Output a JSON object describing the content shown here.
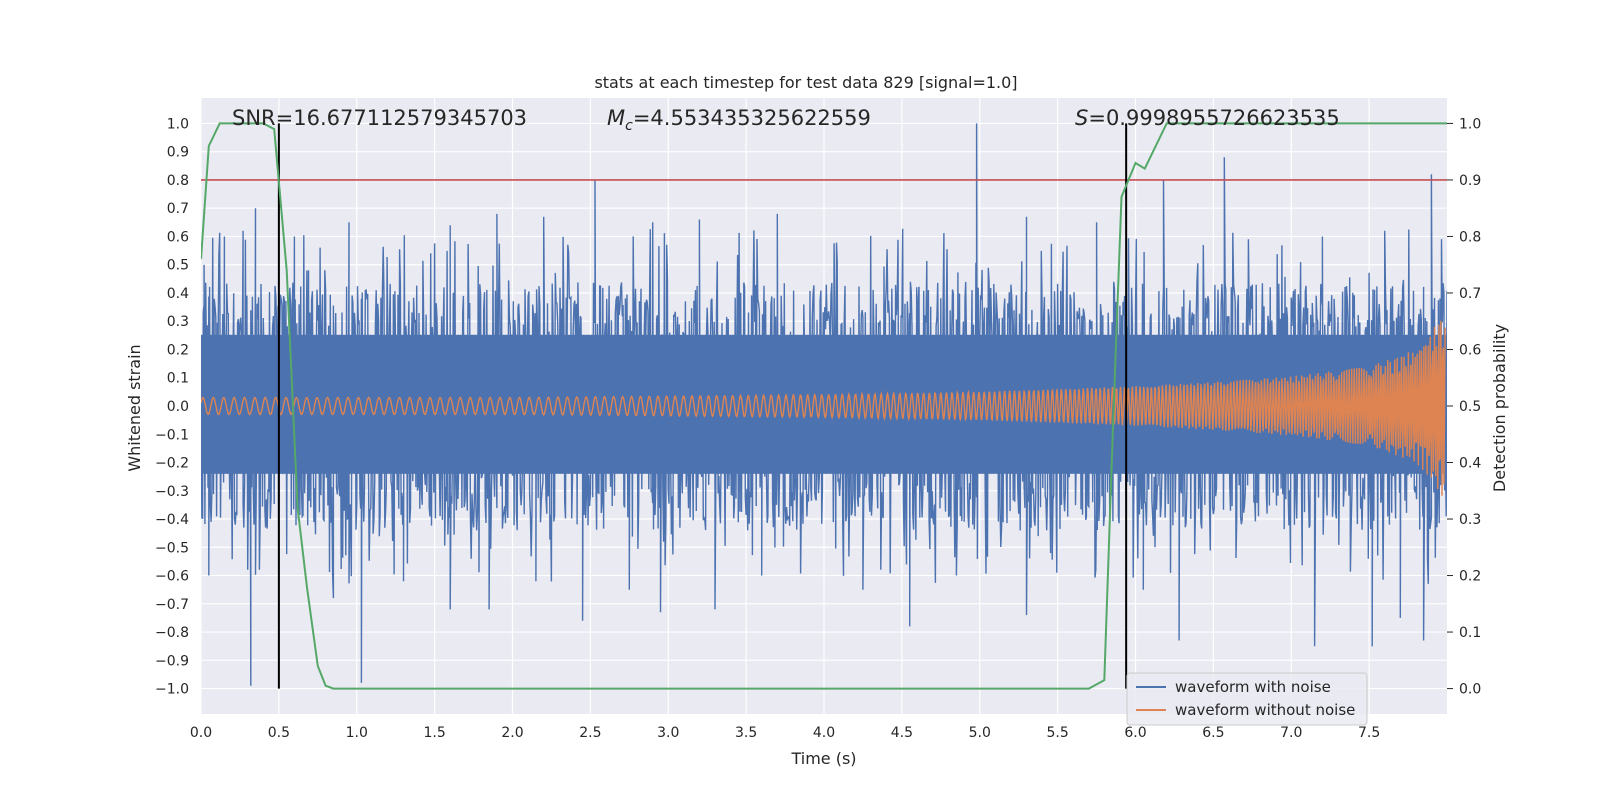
{
  "chart_data": {
    "type": "line",
    "title": "stats at each timestep for test data 829 [signal=1.0]",
    "xlabel": "Time (s)",
    "ylabel": "Whitened strain",
    "y2label": "Detection probability",
    "xlim": [
      0.0,
      8.0
    ],
    "ylim": [
      -1.09,
      1.09
    ],
    "y2lim": [
      -0.045,
      1.045
    ],
    "x_ticks": [
      "0.0",
      "0.5",
      "1.0",
      "1.5",
      "2.0",
      "2.5",
      "3.0",
      "3.5",
      "4.0",
      "4.5",
      "5.0",
      "5.5",
      "6.0",
      "6.5",
      "7.0",
      "7.5"
    ],
    "y_ticks": [
      "1.0",
      "0.9",
      "0.8",
      "0.7",
      "0.6",
      "0.5",
      "0.4",
      "0.3",
      "0.2",
      "0.1",
      "0.0",
      "−0.1",
      "−0.2",
      "−0.3",
      "−0.4",
      "−0.5",
      "−0.6",
      "−0.7",
      "−0.8",
      "−0.9",
      "−1.0"
    ],
    "y2_ticks": [
      "1.0",
      "0.9",
      "0.8",
      "0.7",
      "0.6",
      "0.5",
      "0.4",
      "0.3",
      "0.2",
      "0.1",
      "0.0"
    ],
    "grid": true,
    "legend_position": "lower-right",
    "stats": {
      "snr_label": "SNR=16.677112579345703",
      "mc_symbol": "M",
      "mc_sub": "c",
      "mc_value": "=4.553435325622559",
      "s_symbol": "S",
      "s_value": "=0.9998955726623535"
    },
    "threshold_line": {
      "y": 0.8,
      "color": "#c44e52"
    },
    "vertical_markers": [
      0.5,
      5.94
    ],
    "series": [
      {
        "name": "waveform with noise",
        "color": "#4c72b0",
        "typical_envelope": {
          "upper": 0.42,
          "lower": -0.4
        },
        "peaks": [
          {
            "x": 0.02,
            "y": 0.5
          },
          {
            "x": 0.15,
            "y": 0.6
          },
          {
            "x": 0.27,
            "y": 0.62
          },
          {
            "x": 0.35,
            "y": 0.7
          },
          {
            "x": 0.6,
            "y": 0.6
          },
          {
            "x": 0.95,
            "y": 0.65
          },
          {
            "x": 1.6,
            "y": 0.64
          },
          {
            "x": 1.9,
            "y": 0.68
          },
          {
            "x": 2.2,
            "y": 0.67
          },
          {
            "x": 2.53,
            "y": 0.8
          },
          {
            "x": 2.9,
            "y": 0.65
          },
          {
            "x": 3.2,
            "y": 0.66
          },
          {
            "x": 3.7,
            "y": 0.68
          },
          {
            "x": 4.3,
            "y": 0.6
          },
          {
            "x": 4.98,
            "y": 1.0
          },
          {
            "x": 5.3,
            "y": 0.67
          },
          {
            "x": 5.75,
            "y": 0.65
          },
          {
            "x": 6.18,
            "y": 0.8
          },
          {
            "x": 6.57,
            "y": 0.88
          },
          {
            "x": 7.2,
            "y": 0.6
          },
          {
            "x": 7.6,
            "y": 0.62
          },
          {
            "x": 7.9,
            "y": 0.82
          }
        ],
        "troughs": [
          {
            "x": 0.05,
            "y": -0.6
          },
          {
            "x": 0.32,
            "y": -0.99
          },
          {
            "x": 0.5,
            "y": -0.92
          },
          {
            "x": 0.85,
            "y": -0.68
          },
          {
            "x": 1.03,
            "y": -0.98
          },
          {
            "x": 1.3,
            "y": -0.62
          },
          {
            "x": 1.6,
            "y": -0.72
          },
          {
            "x": 1.85,
            "y": -0.72
          },
          {
            "x": 2.15,
            "y": -0.62
          },
          {
            "x": 2.45,
            "y": -0.76
          },
          {
            "x": 2.75,
            "y": -0.65
          },
          {
            "x": 2.95,
            "y": -0.73
          },
          {
            "x": 3.3,
            "y": -0.72
          },
          {
            "x": 3.6,
            "y": -0.6
          },
          {
            "x": 4.25,
            "y": -0.65
          },
          {
            "x": 4.55,
            "y": -0.78
          },
          {
            "x": 4.85,
            "y": -0.6
          },
          {
            "x": 5.3,
            "y": -0.74
          },
          {
            "x": 6.05,
            "y": -0.65
          },
          {
            "x": 6.28,
            "y": -0.83
          },
          {
            "x": 7.15,
            "y": -0.85
          },
          {
            "x": 7.52,
            "y": -0.85
          },
          {
            "x": 7.7,
            "y": -0.75
          },
          {
            "x": 7.85,
            "y": -0.83
          }
        ]
      },
      {
        "name": "waveform without noise",
        "color": "#dd8452",
        "envelope": [
          {
            "x": 0.0,
            "y": 0.03
          },
          {
            "x": 2.0,
            "y": 0.03
          },
          {
            "x": 4.0,
            "y": 0.04
          },
          {
            "x": 5.0,
            "y": 0.05
          },
          {
            "x": 6.0,
            "y": 0.07
          },
          {
            "x": 6.5,
            "y": 0.085
          },
          {
            "x": 7.0,
            "y": 0.105
          },
          {
            "x": 7.5,
            "y": 0.14
          },
          {
            "x": 7.8,
            "y": 0.2
          },
          {
            "x": 7.9,
            "y": 0.26
          },
          {
            "x": 7.97,
            "y": 0.33
          },
          {
            "x": 8.0,
            "y": 0.25
          }
        ]
      },
      {
        "name": "detection probability",
        "color": "#55a868",
        "axis": "right",
        "points": [
          {
            "x": 0.0,
            "y": 0.76
          },
          {
            "x": 0.05,
            "y": 0.96
          },
          {
            "x": 0.12,
            "y": 1.0
          },
          {
            "x": 0.4,
            "y": 1.0
          },
          {
            "x": 0.47,
            "y": 0.99
          },
          {
            "x": 0.55,
            "y": 0.74
          },
          {
            "x": 0.62,
            "y": 0.32
          },
          {
            "x": 0.68,
            "y": 0.18
          },
          {
            "x": 0.75,
            "y": 0.04
          },
          {
            "x": 0.8,
            "y": 0.005
          },
          {
            "x": 0.85,
            "y": 0.0
          },
          {
            "x": 5.7,
            "y": 0.0
          },
          {
            "x": 5.8,
            "y": 0.015
          },
          {
            "x": 5.86,
            "y": 0.5
          },
          {
            "x": 5.91,
            "y": 0.87
          },
          {
            "x": 6.0,
            "y": 0.93
          },
          {
            "x": 6.06,
            "y": 0.92
          },
          {
            "x": 6.2,
            "y": 1.0
          },
          {
            "x": 8.0,
            "y": 1.0
          }
        ]
      }
    ]
  }
}
